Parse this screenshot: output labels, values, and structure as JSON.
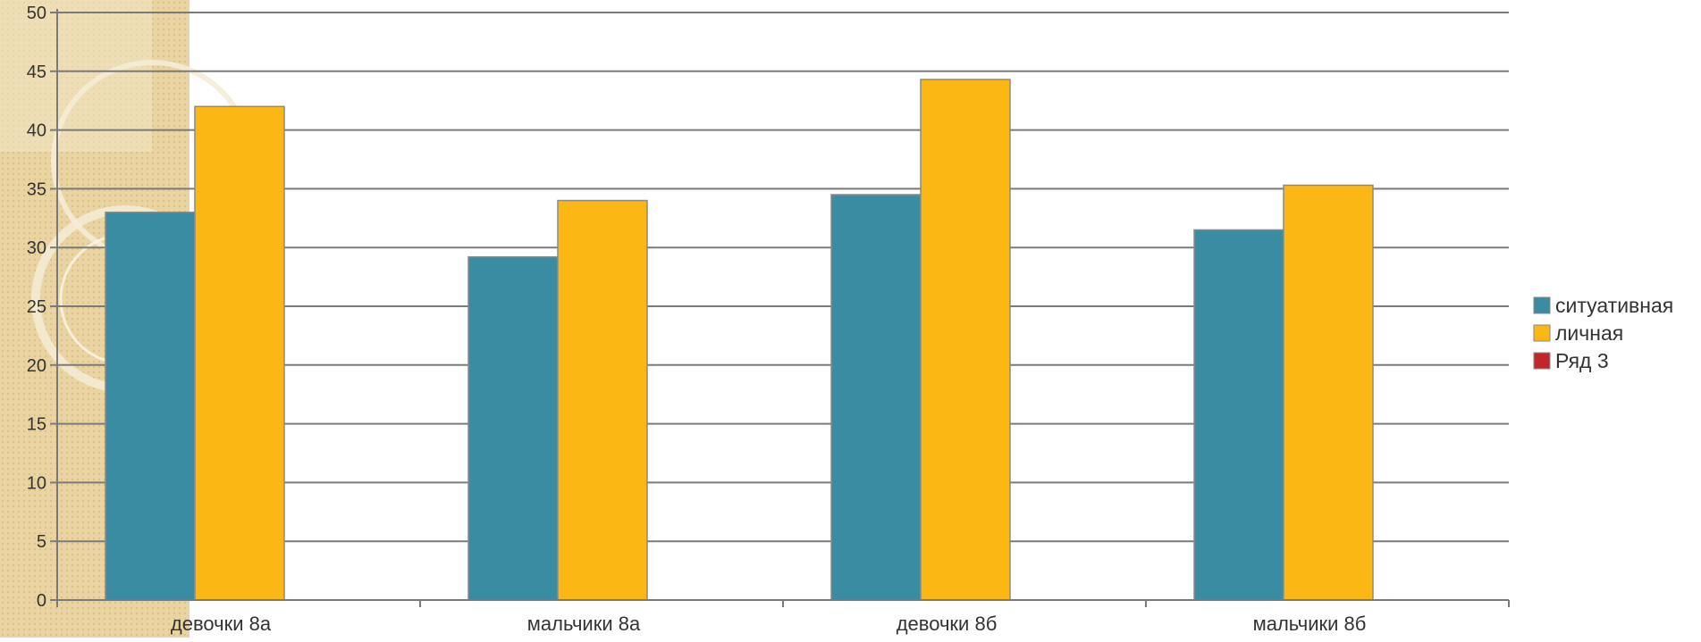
{
  "chart_data": {
    "type": "bar",
    "title": "",
    "xlabel": "",
    "ylabel": "",
    "ylim": [
      0,
      50
    ],
    "ytick_step": 5,
    "ytick_labels": [
      "0",
      "5",
      "10",
      "15",
      "20",
      "25",
      "30",
      "35",
      "40",
      "45",
      "50"
    ],
    "grid": true,
    "legend_position": "right",
    "categories": [
      "девочки 8а",
      "мальчики 8а",
      "девочки 8б",
      "мальчики 8б"
    ],
    "series": [
      {
        "name": "ситуативная",
        "color": "#3a8ca3",
        "values": [
          33,
          29.2,
          34.5,
          31.5
        ]
      },
      {
        "name": "личная",
        "color": "#fbb814",
        "values": [
          42,
          34,
          44.3,
          35.3
        ]
      },
      {
        "name": "Ряд 3",
        "color": "#c0272d",
        "values": [
          0,
          0,
          0,
          0
        ]
      }
    ]
  },
  "background": {
    "panel_color": "#e9d4a2",
    "ring_color": "#f5ecd6"
  }
}
